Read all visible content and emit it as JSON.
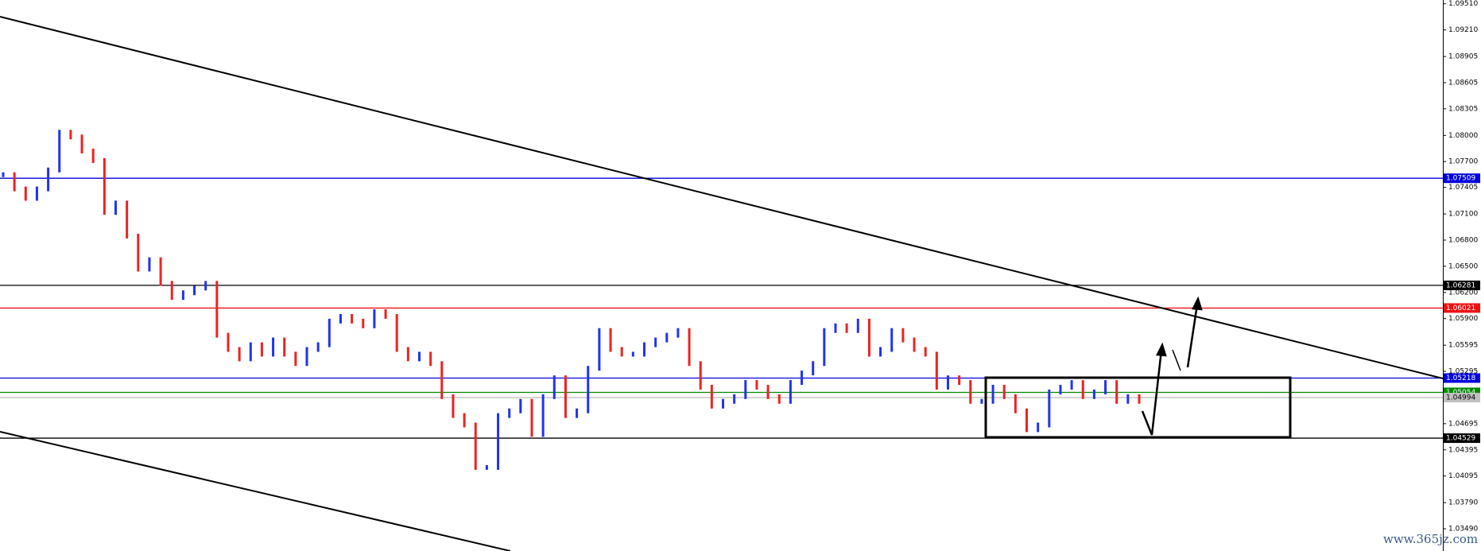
{
  "chart_data": {
    "type": "price-bars",
    "values": [
      1.0755,
      1.07387,
      1.07279,
      1.07387,
      1.07604,
      1.08037,
      1.07983,
      1.07821,
      1.07712,
      1.07117,
      1.07225,
      1.06846,
      1.06467,
      1.06575,
      1.06304,
      1.06142,
      1.06196,
      1.0625,
      1.06304,
      1.05709,
      1.05546,
      1.05438,
      1.056,
      1.05492,
      1.05655,
      1.05492,
      1.05384,
      1.05546,
      1.056,
      1.05871,
      1.05925,
      1.05871,
      1.05817,
      1.05979,
      1.05925,
      1.05546,
      1.05438,
      1.05492,
      1.05384,
      1.05005,
      1.04788,
      1.0468,
      1.04193,
      1.04193,
      1.04788,
      1.04842,
      1.04951,
      1.04572,
      1.05005,
      1.05221,
      1.04788,
      1.04842,
      1.0533,
      1.05763,
      1.05546,
      1.05492,
      1.05492,
      1.056,
      1.05655,
      1.05709,
      1.05763,
      1.05384,
      1.05113,
      1.04896,
      1.04951,
      1.05005,
      1.05167,
      1.05113,
      1.05005,
      1.04951,
      1.05167,
      1.05276,
      1.05384,
      1.05763,
      1.05817,
      1.05763,
      1.05871,
      1.05492,
      1.05546,
      1.05763,
      1.05655,
      1.05546,
      1.05492,
      1.05113,
      1.05221,
      1.05167,
      1.04951,
      1.04951,
      1.05113,
      1.05005,
      1.04842,
      1.04626,
      1.0468,
      1.05059,
      1.05113,
      1.05167,
      1.05005,
      1.05059,
      1.05167,
      1.04951,
      1.05005,
      1.04951
    ],
    "up_color": "#2233ee",
    "down_color": "#ee2222",
    "ylim": [
      1.03235,
      1.09553
    ],
    "yticks": [
      {
        "value": 1.0951,
        "label": "1.09510"
      },
      {
        "value": 1.0921,
        "label": "1.09210"
      },
      1.08905,
      1.08605,
      1.08305,
      {
        "value": 1.08,
        "label": "1.08000"
      },
      {
        "value": 1.077,
        "label": "1.07700"
      },
      1.07405,
      {
        "value": 1.071,
        "label": "1.07100"
      },
      {
        "value": 1.068,
        "label": "1.06800"
      },
      {
        "value": 1.065,
        "label": "1.06500"
      },
      {
        "value": 1.062,
        "label": "1.06200"
      },
      {
        "value": 1.059,
        "label": "1.05900"
      },
      1.05595,
      1.05295,
      1.04695,
      1.04395,
      1.04095,
      {
        "value": 1.0379,
        "label": "1.03790"
      },
      {
        "value": 1.0349,
        "label": "1.03490"
      }
    ],
    "levels": [
      {
        "value": 1.07509,
        "color": "#0000dd"
      },
      {
        "value": 1.06281,
        "color": "#000000"
      },
      {
        "value": 1.06021,
        "color": "#ee1111"
      },
      {
        "value": 1.05218,
        "color": "#0000dd"
      },
      {
        "value": 1.05054,
        "color": "#008800"
      },
      {
        "value": 1.04994,
        "color": "#c0c0c0"
      },
      {
        "value": 1.04529,
        "color": "#000000"
      }
    ],
    "watermark": "www.365jz.com"
  }
}
